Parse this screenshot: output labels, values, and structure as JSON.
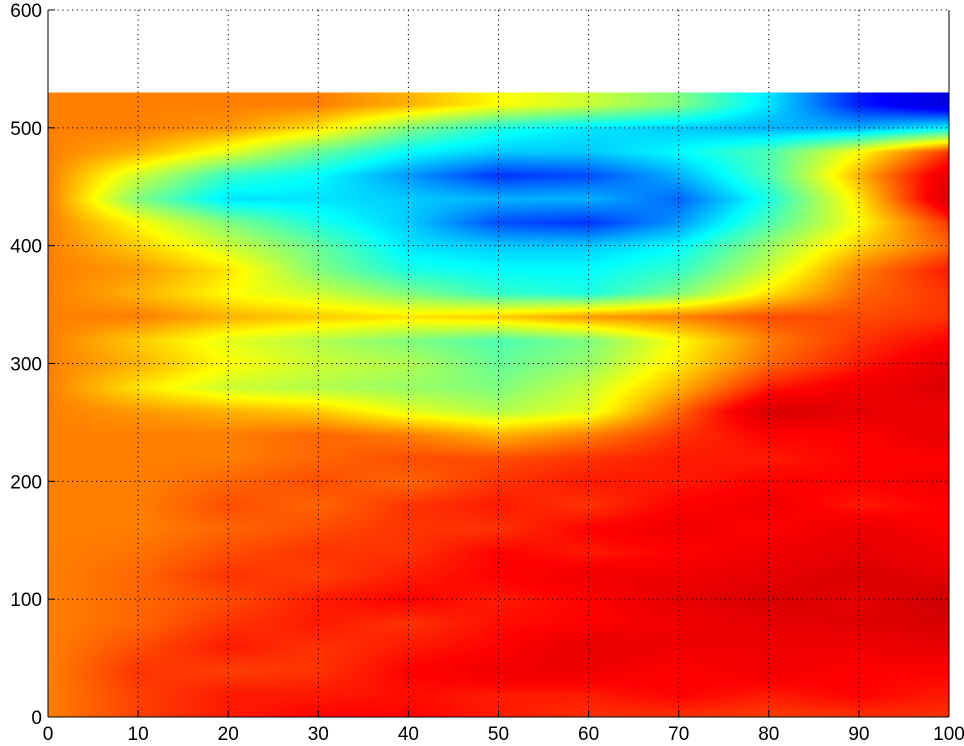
{
  "chart_data": {
    "type": "heatmap",
    "title": "",
    "xlabel": "",
    "ylabel": "",
    "xlim": [
      0,
      100
    ],
    "ylim": [
      0,
      600
    ],
    "data_ymax": 530,
    "grid": true,
    "colormap": "jet",
    "colormap_stops": [
      "#00008f",
      "#0000ff",
      "#00ffff",
      "#ffff00",
      "#ff0000",
      "#800000"
    ],
    "x_ticks": [
      0,
      10,
      20,
      30,
      40,
      50,
      60,
      70,
      80,
      90,
      100
    ],
    "y_ticks": [
      0,
      100,
      200,
      300,
      400,
      500,
      600
    ],
    "x_tick_labels": [
      "0",
      "10",
      "20",
      "30",
      "40",
      "50",
      "60",
      "70",
      "80",
      "90",
      "100"
    ],
    "y_tick_labels": [
      "0",
      "100",
      "200",
      "300",
      "400",
      "500",
      "600"
    ],
    "grid_x": [
      0,
      10,
      20,
      30,
      40,
      50,
      60,
      70,
      80,
      90,
      100
    ],
    "grid_y": [
      0,
      20,
      40,
      60,
      80,
      100,
      120,
      140,
      160,
      180,
      200,
      220,
      240,
      260,
      280,
      300,
      320,
      340,
      360,
      380,
      400,
      420,
      440,
      460,
      480,
      500,
      520
    ],
    "z": [
      [
        0.7,
        0.75,
        0.78,
        0.8,
        0.8,
        0.78,
        0.76,
        0.76,
        0.75,
        0.76,
        0.76
      ],
      [
        0.7,
        0.75,
        0.78,
        0.78,
        0.79,
        0.78,
        0.78,
        0.8,
        0.78,
        0.8,
        0.78
      ],
      [
        0.7,
        0.76,
        0.75,
        0.76,
        0.8,
        0.82,
        0.82,
        0.8,
        0.82,
        0.8,
        0.8
      ],
      [
        0.7,
        0.74,
        0.78,
        0.76,
        0.78,
        0.8,
        0.84,
        0.82,
        0.82,
        0.82,
        0.84
      ],
      [
        0.7,
        0.72,
        0.76,
        0.78,
        0.76,
        0.79,
        0.8,
        0.82,
        0.84,
        0.85,
        0.86
      ],
      [
        0.7,
        0.72,
        0.74,
        0.78,
        0.8,
        0.78,
        0.8,
        0.84,
        0.86,
        0.84,
        0.88
      ],
      [
        0.7,
        0.72,
        0.76,
        0.75,
        0.78,
        0.8,
        0.82,
        0.82,
        0.84,
        0.86,
        0.84
      ],
      [
        0.7,
        0.71,
        0.74,
        0.76,
        0.76,
        0.8,
        0.78,
        0.8,
        0.82,
        0.84,
        0.82
      ],
      [
        0.7,
        0.7,
        0.72,
        0.74,
        0.76,
        0.76,
        0.8,
        0.82,
        0.8,
        0.83,
        0.8
      ],
      [
        0.7,
        0.7,
        0.74,
        0.72,
        0.76,
        0.78,
        0.76,
        0.8,
        0.82,
        0.78,
        0.8
      ],
      [
        0.7,
        0.7,
        0.72,
        0.74,
        0.72,
        0.76,
        0.78,
        0.78,
        0.8,
        0.8,
        0.82
      ],
      [
        0.7,
        0.7,
        0.7,
        0.72,
        0.74,
        0.74,
        0.76,
        0.78,
        0.78,
        0.8,
        0.8
      ],
      [
        0.7,
        0.7,
        0.7,
        0.72,
        0.7,
        0.66,
        0.7,
        0.76,
        0.8,
        0.8,
        0.84
      ],
      [
        0.7,
        0.68,
        0.66,
        0.64,
        0.58,
        0.54,
        0.58,
        0.72,
        0.86,
        0.84,
        0.82
      ],
      [
        0.7,
        0.62,
        0.56,
        0.54,
        0.52,
        0.5,
        0.56,
        0.66,
        0.78,
        0.82,
        0.86
      ],
      [
        0.7,
        0.66,
        0.6,
        0.56,
        0.54,
        0.48,
        0.52,
        0.62,
        0.72,
        0.78,
        0.84
      ],
      [
        0.7,
        0.64,
        0.58,
        0.54,
        0.5,
        0.46,
        0.5,
        0.6,
        0.7,
        0.76,
        0.8
      ],
      [
        0.7,
        0.7,
        0.66,
        0.64,
        0.62,
        0.64,
        0.68,
        0.7,
        0.74,
        0.74,
        0.76
      ],
      [
        0.7,
        0.66,
        0.6,
        0.56,
        0.5,
        0.44,
        0.42,
        0.5,
        0.62,
        0.72,
        0.76
      ],
      [
        0.7,
        0.68,
        0.62,
        0.5,
        0.42,
        0.4,
        0.4,
        0.44,
        0.56,
        0.7,
        0.78
      ],
      [
        0.7,
        0.64,
        0.56,
        0.48,
        0.38,
        0.36,
        0.36,
        0.4,
        0.52,
        0.64,
        0.72
      ],
      [
        0.7,
        0.6,
        0.5,
        0.42,
        0.36,
        0.26,
        0.24,
        0.32,
        0.46,
        0.6,
        0.76
      ],
      [
        0.7,
        0.5,
        0.38,
        0.38,
        0.36,
        0.34,
        0.34,
        0.28,
        0.42,
        0.62,
        0.86
      ],
      [
        0.7,
        0.56,
        0.44,
        0.4,
        0.32,
        0.24,
        0.26,
        0.34,
        0.46,
        0.66,
        0.84
      ],
      [
        0.7,
        0.66,
        0.58,
        0.48,
        0.4,
        0.36,
        0.36,
        0.4,
        0.46,
        0.6,
        0.76
      ],
      [
        0.7,
        0.7,
        0.68,
        0.62,
        0.5,
        0.42,
        0.38,
        0.36,
        0.34,
        0.34,
        0.4
      ],
      [
        0.7,
        0.7,
        0.7,
        0.7,
        0.66,
        0.6,
        0.56,
        0.5,
        0.38,
        0.22,
        0.14
      ]
    ]
  }
}
